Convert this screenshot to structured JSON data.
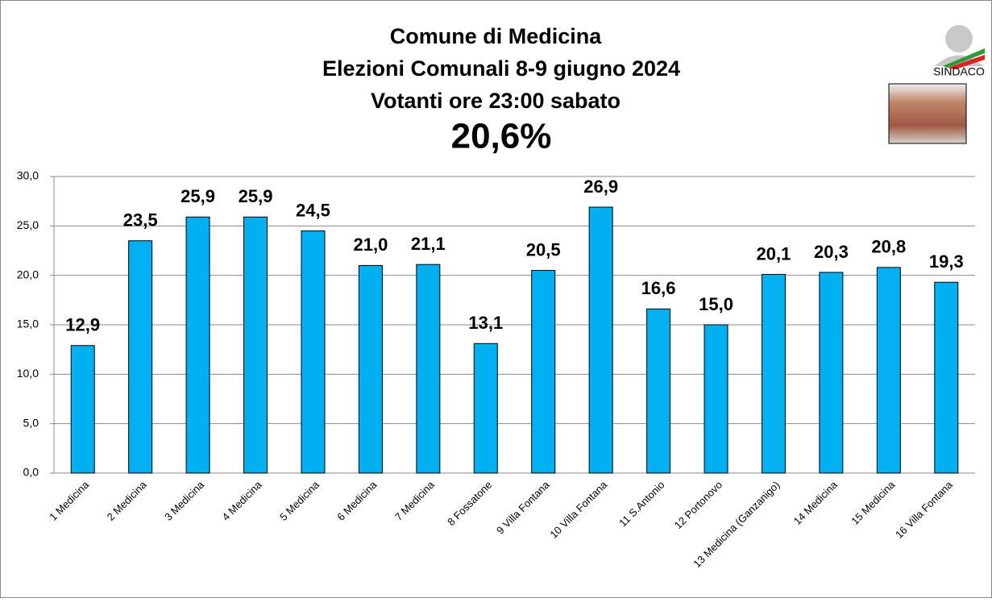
{
  "chart_data": {
    "type": "bar",
    "title": [
      "Comune di Medicina",
      "Elezioni Comunali 8-9 giugno 2024",
      "Votanti ore 23:00 sabato"
    ],
    "subtitle": "20,6%",
    "logo_text": "SINDACO",
    "categories": [
      "1 Medicina",
      "2 Medicina",
      "3 Medicina",
      "4 Medicina",
      "5 Medicina",
      "6 Medicina",
      "7 Medicina",
      "8 Fossatone",
      "9 Villa Fontana",
      "10 Villa Fontana",
      "11 S.Antonio",
      "12 Portonovo",
      "13 Medicina (Ganzanigo)",
      "14 Medicina",
      "15 Medicina",
      "16 Villa Fontana"
    ],
    "values": [
      12.9,
      23.5,
      25.9,
      25.9,
      24.5,
      21.0,
      21.1,
      13.1,
      20.5,
      26.9,
      16.6,
      15.0,
      20.1,
      20.3,
      20.8,
      19.3
    ],
    "value_labels": [
      "12,9",
      "23,5",
      "25,9",
      "25,9",
      "24,5",
      "21,0",
      "21,1",
      "13,1",
      "20,5",
      "26,9",
      "16,6",
      "15,0",
      "20,1",
      "20,3",
      "20,8",
      "19,3"
    ],
    "color": "#00b0f0",
    "ylim": [
      0,
      30
    ],
    "yticks": [
      {
        "value": 0,
        "label": "0,0"
      },
      {
        "value": 5,
        "label": "5,0"
      },
      {
        "value": 10,
        "label": "10,0"
      },
      {
        "value": 15,
        "label": "15,0"
      },
      {
        "value": 20,
        "label": "20,0"
      },
      {
        "value": 25,
        "label": "25,0"
      },
      {
        "value": 30,
        "label": "30,0"
      }
    ],
    "grid": true
  }
}
